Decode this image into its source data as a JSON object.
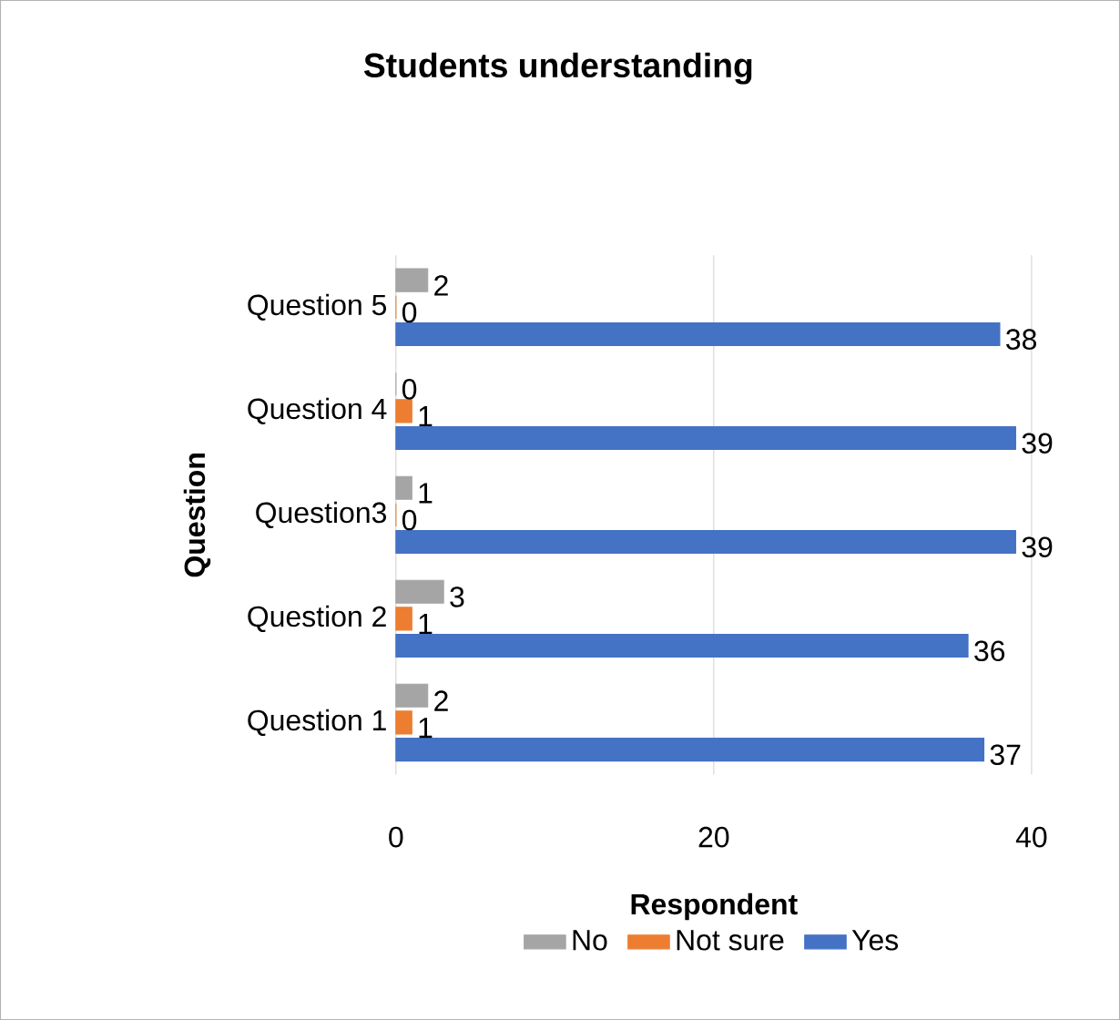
{
  "chart_data": {
    "type": "bar",
    "orientation": "horizontal",
    "title": "Students understanding",
    "xlabel": "Respondent",
    "ylabel": "Question",
    "categories": [
      "Question 5",
      "Question 4",
      "Question3",
      "Question 2",
      "Question 1"
    ],
    "series": [
      {
        "name": "No",
        "color": "#a5a5a5",
        "values": [
          2,
          0,
          1,
          3,
          2
        ]
      },
      {
        "name": "Not sure",
        "color": "#ed7d31",
        "values": [
          0,
          1,
          0,
          1,
          1
        ]
      },
      {
        "name": "Yes",
        "color": "#4472c4",
        "values": [
          38,
          39,
          39,
          36,
          37
        ]
      }
    ],
    "xlim": [
      0,
      40
    ],
    "xticks": [
      0,
      20,
      40
    ],
    "grid": "x",
    "legend": "bottom",
    "data_labels": true
  }
}
